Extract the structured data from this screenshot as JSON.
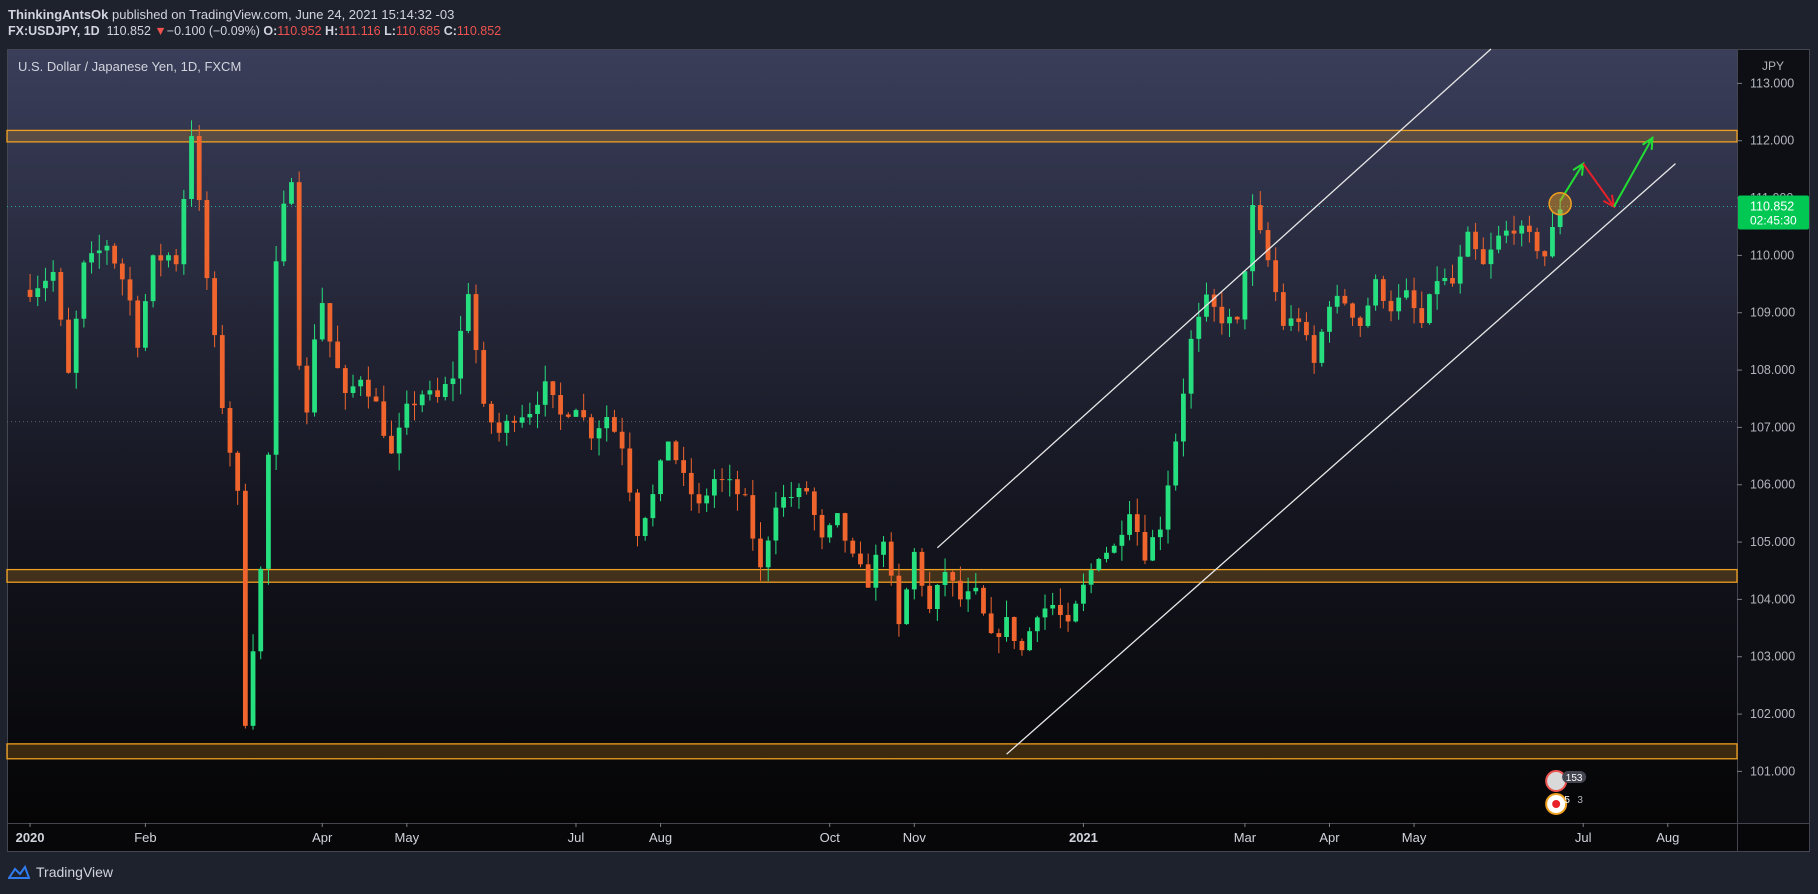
{
  "header": {
    "author": "ThinkingAntsOk",
    "published": " published on TradingView.com, June 24, 2021 15:14:32 -03",
    "symbol": "FX:USDJPY, 1D",
    "last": "110.852",
    "change_arrow": "▼",
    "change": "−0.100 (−0.09%)",
    "o_label": "O:",
    "o_value": "110.952",
    "h_label": "H:",
    "h_value": "111.116",
    "l_label": "L:",
    "l_value": "110.685",
    "c_label": "C:",
    "c_value": "110.852"
  },
  "footer": {
    "brand": "TradingView"
  },
  "colors": {
    "up": "#26e07f",
    "down": "#f0642d",
    "zone": "#f0a020",
    "channel": "#e8e8e8",
    "price_tag": "#00c853",
    "green_arrow": "#22dd33",
    "red_arrow": "#e8202a"
  },
  "chart_data": {
    "type": "candlestick",
    "title": "U.S. Dollar / Japanese Yen, 1D, FXCM",
    "currency_label": "JPY",
    "ylim": [
      100.1,
      113.6
    ],
    "y_ticks": [
      101,
      102,
      103,
      104,
      105,
      106,
      107,
      108,
      109,
      110,
      111,
      112,
      113
    ],
    "y_tick_labels": [
      "101.000",
      "102.000",
      "103.000",
      "104.000",
      "105.000",
      "106.000",
      "107.000",
      "108.000",
      "109.000",
      "110.000",
      "111.000",
      "112.000",
      "113.000"
    ],
    "x_range_days": [
      -3,
      222
    ],
    "x_ticks": [
      {
        "label": "2020",
        "day": 0,
        "bold": true
      },
      {
        "label": "Feb",
        "day": 15
      },
      {
        "label": "Apr",
        "day": 38
      },
      {
        "label": "May",
        "day": 49
      },
      {
        "label": "Jul",
        "day": 71
      },
      {
        "label": "Aug",
        "day": 82
      },
      {
        "label": "Oct",
        "day": 104
      },
      {
        "label": "Nov",
        "day": 115
      },
      {
        "label": "2021",
        "day": 137,
        "bold": true
      },
      {
        "label": "Mar",
        "day": 158
      },
      {
        "label": "Apr",
        "day": 169
      },
      {
        "label": "May",
        "day": 180
      },
      {
        "label": "Jul",
        "day": 202
      },
      {
        "label": "Aug",
        "day": 213
      }
    ],
    "last_price": {
      "value": 110.852,
      "label": "110.852",
      "countdown": "02:45:30"
    },
    "dotted_level": 107.1,
    "zones": [
      {
        "low": 111.98,
        "high": 112.18
      },
      {
        "low": 104.3,
        "high": 104.52
      },
      {
        "low": 101.22,
        "high": 101.48
      }
    ],
    "channel_upper": [
      [
        118,
        104.9
      ],
      [
        190,
        113.6
      ]
    ],
    "channel_lower": [
      [
        127,
        101.3
      ],
      [
        214,
        111.6
      ]
    ],
    "projection_green_1": [
      [
        199,
        110.95
      ],
      [
        202,
        111.6
      ]
    ],
    "projection_red": [
      [
        202,
        111.6
      ],
      [
        206,
        110.85
      ]
    ],
    "projection_green_2": [
      [
        206,
        110.85
      ],
      [
        211,
        112.05
      ]
    ],
    "highlight_circle": {
      "day": 199,
      "value": 110.9
    },
    "anchors": [
      [
        0,
        109.4
      ],
      [
        3,
        109.7
      ],
      [
        5,
        107.9
      ],
      [
        7,
        109.8
      ],
      [
        10,
        110.2
      ],
      [
        12,
        109.6
      ],
      [
        13,
        109.2
      ],
      [
        14,
        108.5
      ],
      [
        16,
        109.9
      ],
      [
        18,
        110
      ],
      [
        19,
        109.9
      ],
      [
        21,
        112.15
      ],
      [
        23,
        109.6
      ],
      [
        25,
        107.4
      ],
      [
        27,
        105.8
      ],
      [
        28,
        101.9
      ],
      [
        30,
        104.5
      ],
      [
        31,
        106.5
      ],
      [
        32,
        109.8
      ],
      [
        33,
        110.8
      ],
      [
        34,
        111.4
      ],
      [
        35,
        108.2
      ],
      [
        36,
        107.2
      ],
      [
        37,
        108.6
      ],
      [
        38,
        109.2
      ],
      [
        39,
        108.5
      ],
      [
        41,
        107.5
      ],
      [
        43,
        107.9
      ],
      [
        45,
        107.4
      ],
      [
        47,
        106.5
      ],
      [
        49,
        107.3
      ],
      [
        51,
        107.6
      ],
      [
        53,
        107.5
      ],
      [
        55,
        107.9
      ],
      [
        57,
        109.4
      ],
      [
        59,
        107.3
      ],
      [
        61,
        106.9
      ],
      [
        63,
        107.2
      ],
      [
        65,
        107.3
      ],
      [
        67,
        107.7
      ],
      [
        69,
        107.2
      ],
      [
        71,
        107.4
      ],
      [
        73,
        106.9
      ],
      [
        75,
        107.2
      ],
      [
        77,
        106.7
      ],
      [
        79,
        105.2
      ],
      [
        81,
        105.8
      ],
      [
        83,
        106.8
      ],
      [
        85,
        106.1
      ],
      [
        87,
        105.6
      ],
      [
        89,
        106.1
      ],
      [
        91,
        106.0
      ],
      [
        93,
        105.7
      ],
      [
        95,
        104.5
      ],
      [
        97,
        105.7
      ],
      [
        99,
        105.8
      ],
      [
        101,
        105.9
      ],
      [
        103,
        105.0
      ],
      [
        105,
        105.4
      ],
      [
        107,
        104.7
      ],
      [
        109,
        104.3
      ],
      [
        111,
        105.1
      ],
      [
        113,
        103.5
      ],
      [
        115,
        104.8
      ],
      [
        117,
        103.8
      ],
      [
        119,
        104.5
      ],
      [
        121,
        104.0
      ],
      [
        123,
        104.1
      ],
      [
        125,
        103.3
      ],
      [
        127,
        103.6
      ],
      [
        129,
        103.1
      ],
      [
        131,
        103.8
      ],
      [
        133,
        103.9
      ],
      [
        135,
        103.5
      ],
      [
        137,
        104.2
      ],
      [
        139,
        104.8
      ],
      [
        141,
        104.9
      ],
      [
        143,
        105.6
      ],
      [
        145,
        104.8
      ],
      [
        147,
        105.3
      ],
      [
        149,
        106.8
      ],
      [
        151,
        108.5
      ],
      [
        153,
        109.2
      ],
      [
        155,
        108.9
      ],
      [
        157,
        108.8
      ],
      [
        159,
        110.8
      ],
      [
        161,
        109.9
      ],
      [
        163,
        108.8
      ],
      [
        165,
        108.9
      ],
      [
        167,
        108.1
      ],
      [
        169,
        109.2
      ],
      [
        171,
        109.2
      ],
      [
        173,
        108.8
      ],
      [
        175,
        109.5
      ],
      [
        177,
        109.1
      ],
      [
        179,
        109.3
      ],
      [
        181,
        108.8
      ],
      [
        183,
        109.6
      ],
      [
        185,
        109.5
      ],
      [
        187,
        110.3
      ],
      [
        189,
        109.8
      ],
      [
        191,
        110.3
      ],
      [
        193,
        110.5
      ],
      [
        195,
        110.3
      ],
      [
        197,
        110.0
      ],
      [
        199,
        110.85
      ]
    ],
    "calendar_badges": [
      {
        "flag": "US",
        "count": "153"
      },
      {
        "flag": "JP",
        "count": "5",
        "extra": "3"
      }
    ]
  }
}
